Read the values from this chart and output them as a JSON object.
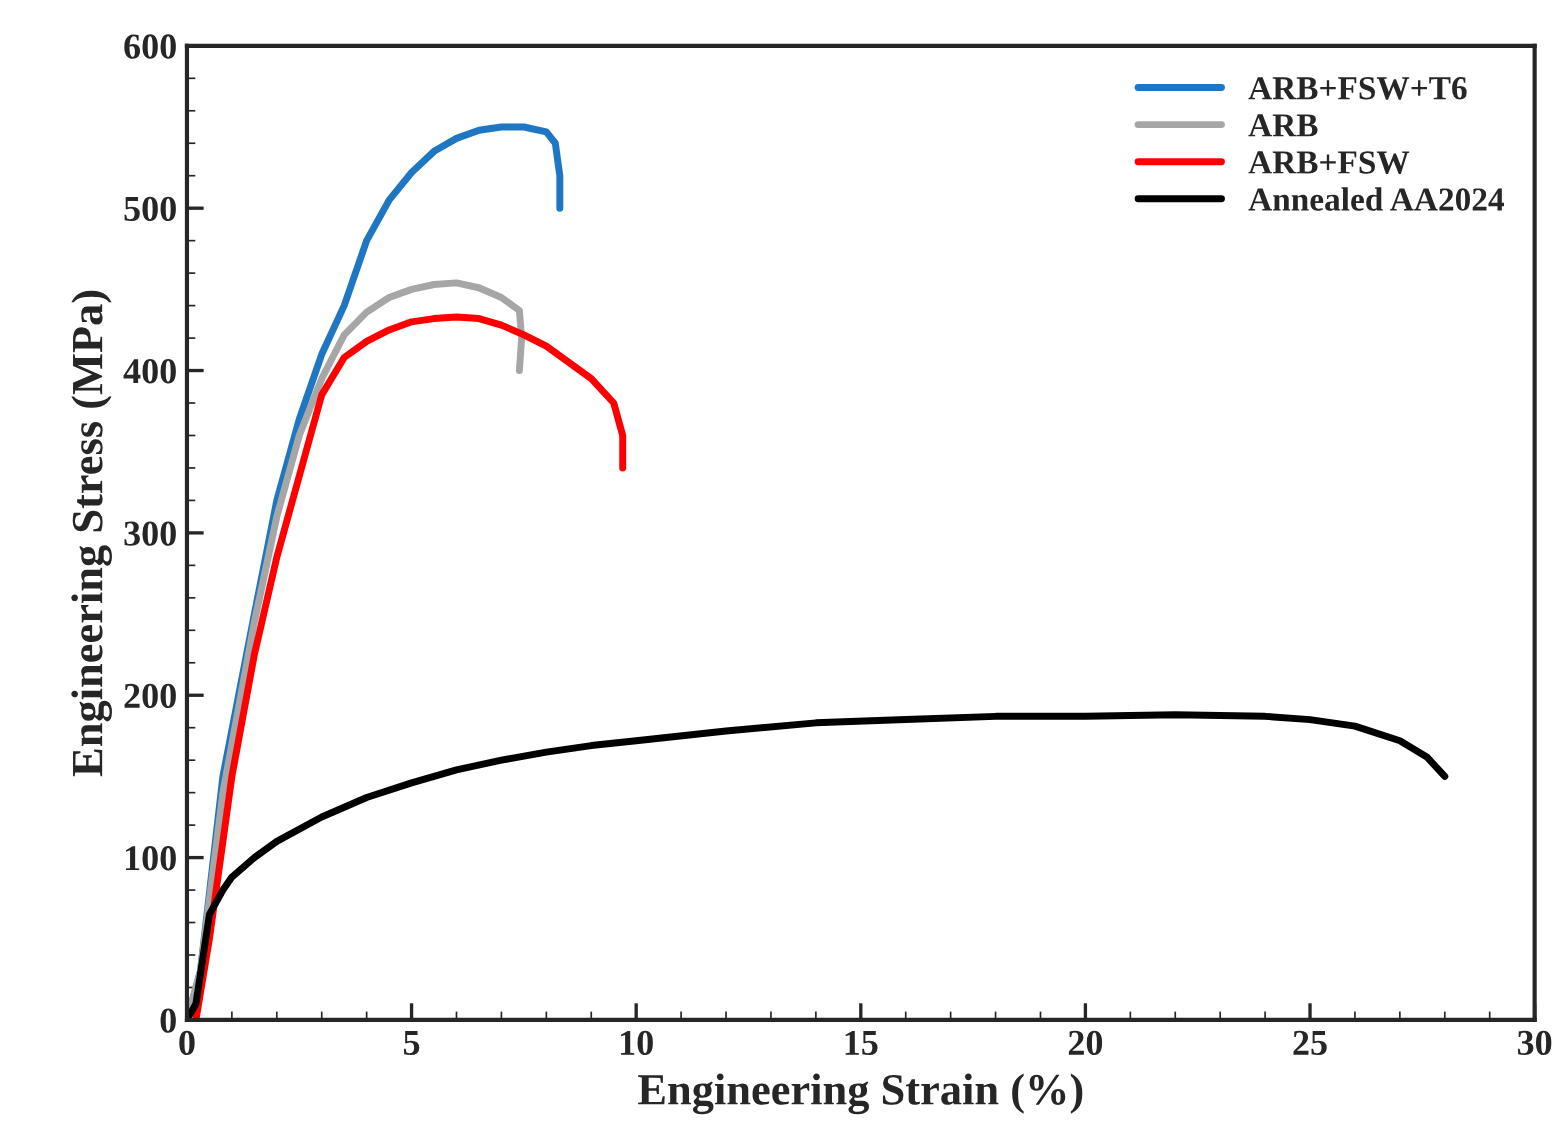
{
  "chart_data": {
    "type": "line",
    "xlabel": "Engineering Strain (%)",
    "ylabel": "Engineering Stress (MPa)",
    "xlim": [
      0,
      30
    ],
    "xticks": [
      0,
      5,
      10,
      15,
      20,
      25,
      30
    ],
    "ylim": [
      0,
      600
    ],
    "yticks": [
      0,
      100,
      200,
      300,
      400,
      500,
      600
    ],
    "grid": false,
    "legend": "top right",
    "marker": "none",
    "line_style": "solid",
    "series": [
      {
        "name": "ARB+FSW+T6",
        "color": "#1f77c4",
        "x": [
          0,
          0.3,
          0.8,
          1.5,
          2,
          2.5,
          3,
          3.5,
          4,
          4.5,
          5,
          5.5,
          6,
          6.5,
          7,
          7.5,
          8,
          8.2,
          8.3,
          8.3
        ],
        "values": [
          0,
          30,
          150,
          250,
          320,
          370,
          410,
          440,
          480,
          505,
          522,
          535,
          543,
          548,
          550,
          550,
          547,
          540,
          520,
          500
        ]
      },
      {
        "name": "ARB",
        "color": "#a6a6a6",
        "x": [
          0,
          0.3,
          0.8,
          1.5,
          2,
          2.5,
          3,
          3.5,
          4,
          4.5,
          5,
          5.5,
          6,
          6.5,
          7,
          7.4,
          7.45,
          7.4
        ],
        "values": [
          0,
          30,
          140,
          245,
          310,
          360,
          395,
          422,
          436,
          445,
          450,
          453,
          454,
          451,
          445,
          437,
          420,
          400
        ]
      },
      {
        "name": "ARB+FSW",
        "color": "#ff0000",
        "x": [
          0.2,
          0.5,
          1,
          1.5,
          2,
          2.5,
          3,
          3.5,
          4,
          4.5,
          5,
          5.5,
          6,
          6.5,
          7,
          7.5,
          8,
          8.5,
          9,
          9.5,
          9.7,
          9.7
        ],
        "values": [
          0,
          50,
          150,
          225,
          285,
          335,
          385,
          408,
          418,
          425,
          430,
          432,
          433,
          432,
          428,
          422,
          415,
          405,
          395,
          380,
          360,
          340
        ]
      },
      {
        "name": "Annealed AA2024",
        "color": "#000000",
        "x": [
          0,
          0.2,
          0.5,
          0.8,
          1,
          1.5,
          2,
          3,
          4,
          5,
          6,
          7,
          8,
          9,
          10,
          12,
          14,
          16,
          18,
          20,
          22,
          24,
          25,
          26,
          27,
          27.6,
          28
        ],
        "values": [
          0,
          10,
          65,
          80,
          88,
          100,
          110,
          125,
          137,
          146,
          154,
          160,
          165,
          169,
          172,
          178,
          183,
          185,
          187,
          187,
          188,
          187,
          185,
          181,
          172,
          162,
          150
        ]
      }
    ]
  }
}
